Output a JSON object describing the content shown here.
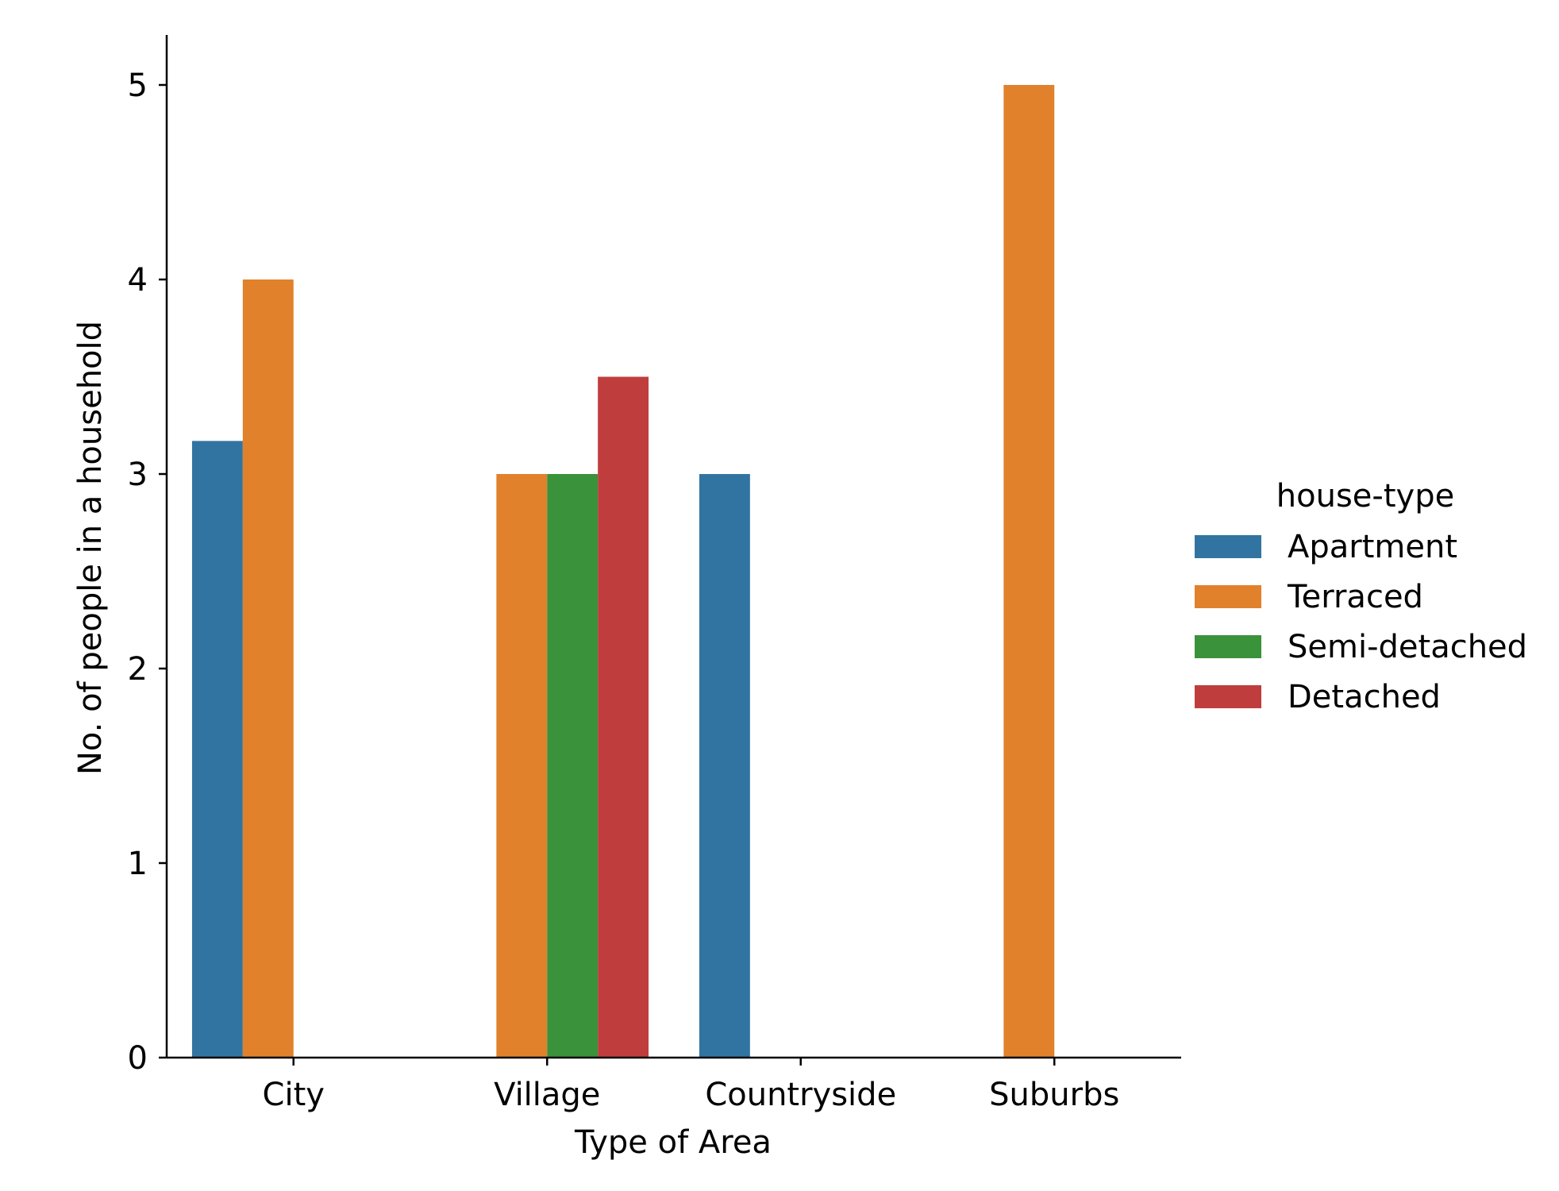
{
  "chart_data": {
    "type": "bar",
    "title": "",
    "xlabel": "Type of Area",
    "ylabel": "No. of people in a household",
    "categories": [
      "City",
      "Village",
      "Countryside",
      "Suburbs"
    ],
    "ylim": [
      0,
      5.25
    ],
    "yticks": [
      "0",
      "1",
      "2",
      "3",
      "4",
      "5"
    ],
    "grid": false,
    "legend": {
      "title": "house-type",
      "placement": "right"
    },
    "series": [
      {
        "name": "Apartment",
        "color": "#3274a1",
        "values": [
          3.17,
          null,
          3.0,
          null
        ]
      },
      {
        "name": "Terraced",
        "color": "#e1812c",
        "values": [
          4.0,
          3.0,
          null,
          5.0
        ]
      },
      {
        "name": "Semi-detached",
        "color": "#3a923a",
        "values": [
          null,
          3.0,
          null,
          null
        ]
      },
      {
        "name": "Detached",
        "color": "#c03d3e",
        "values": [
          null,
          3.5,
          null,
          null
        ]
      }
    ]
  }
}
